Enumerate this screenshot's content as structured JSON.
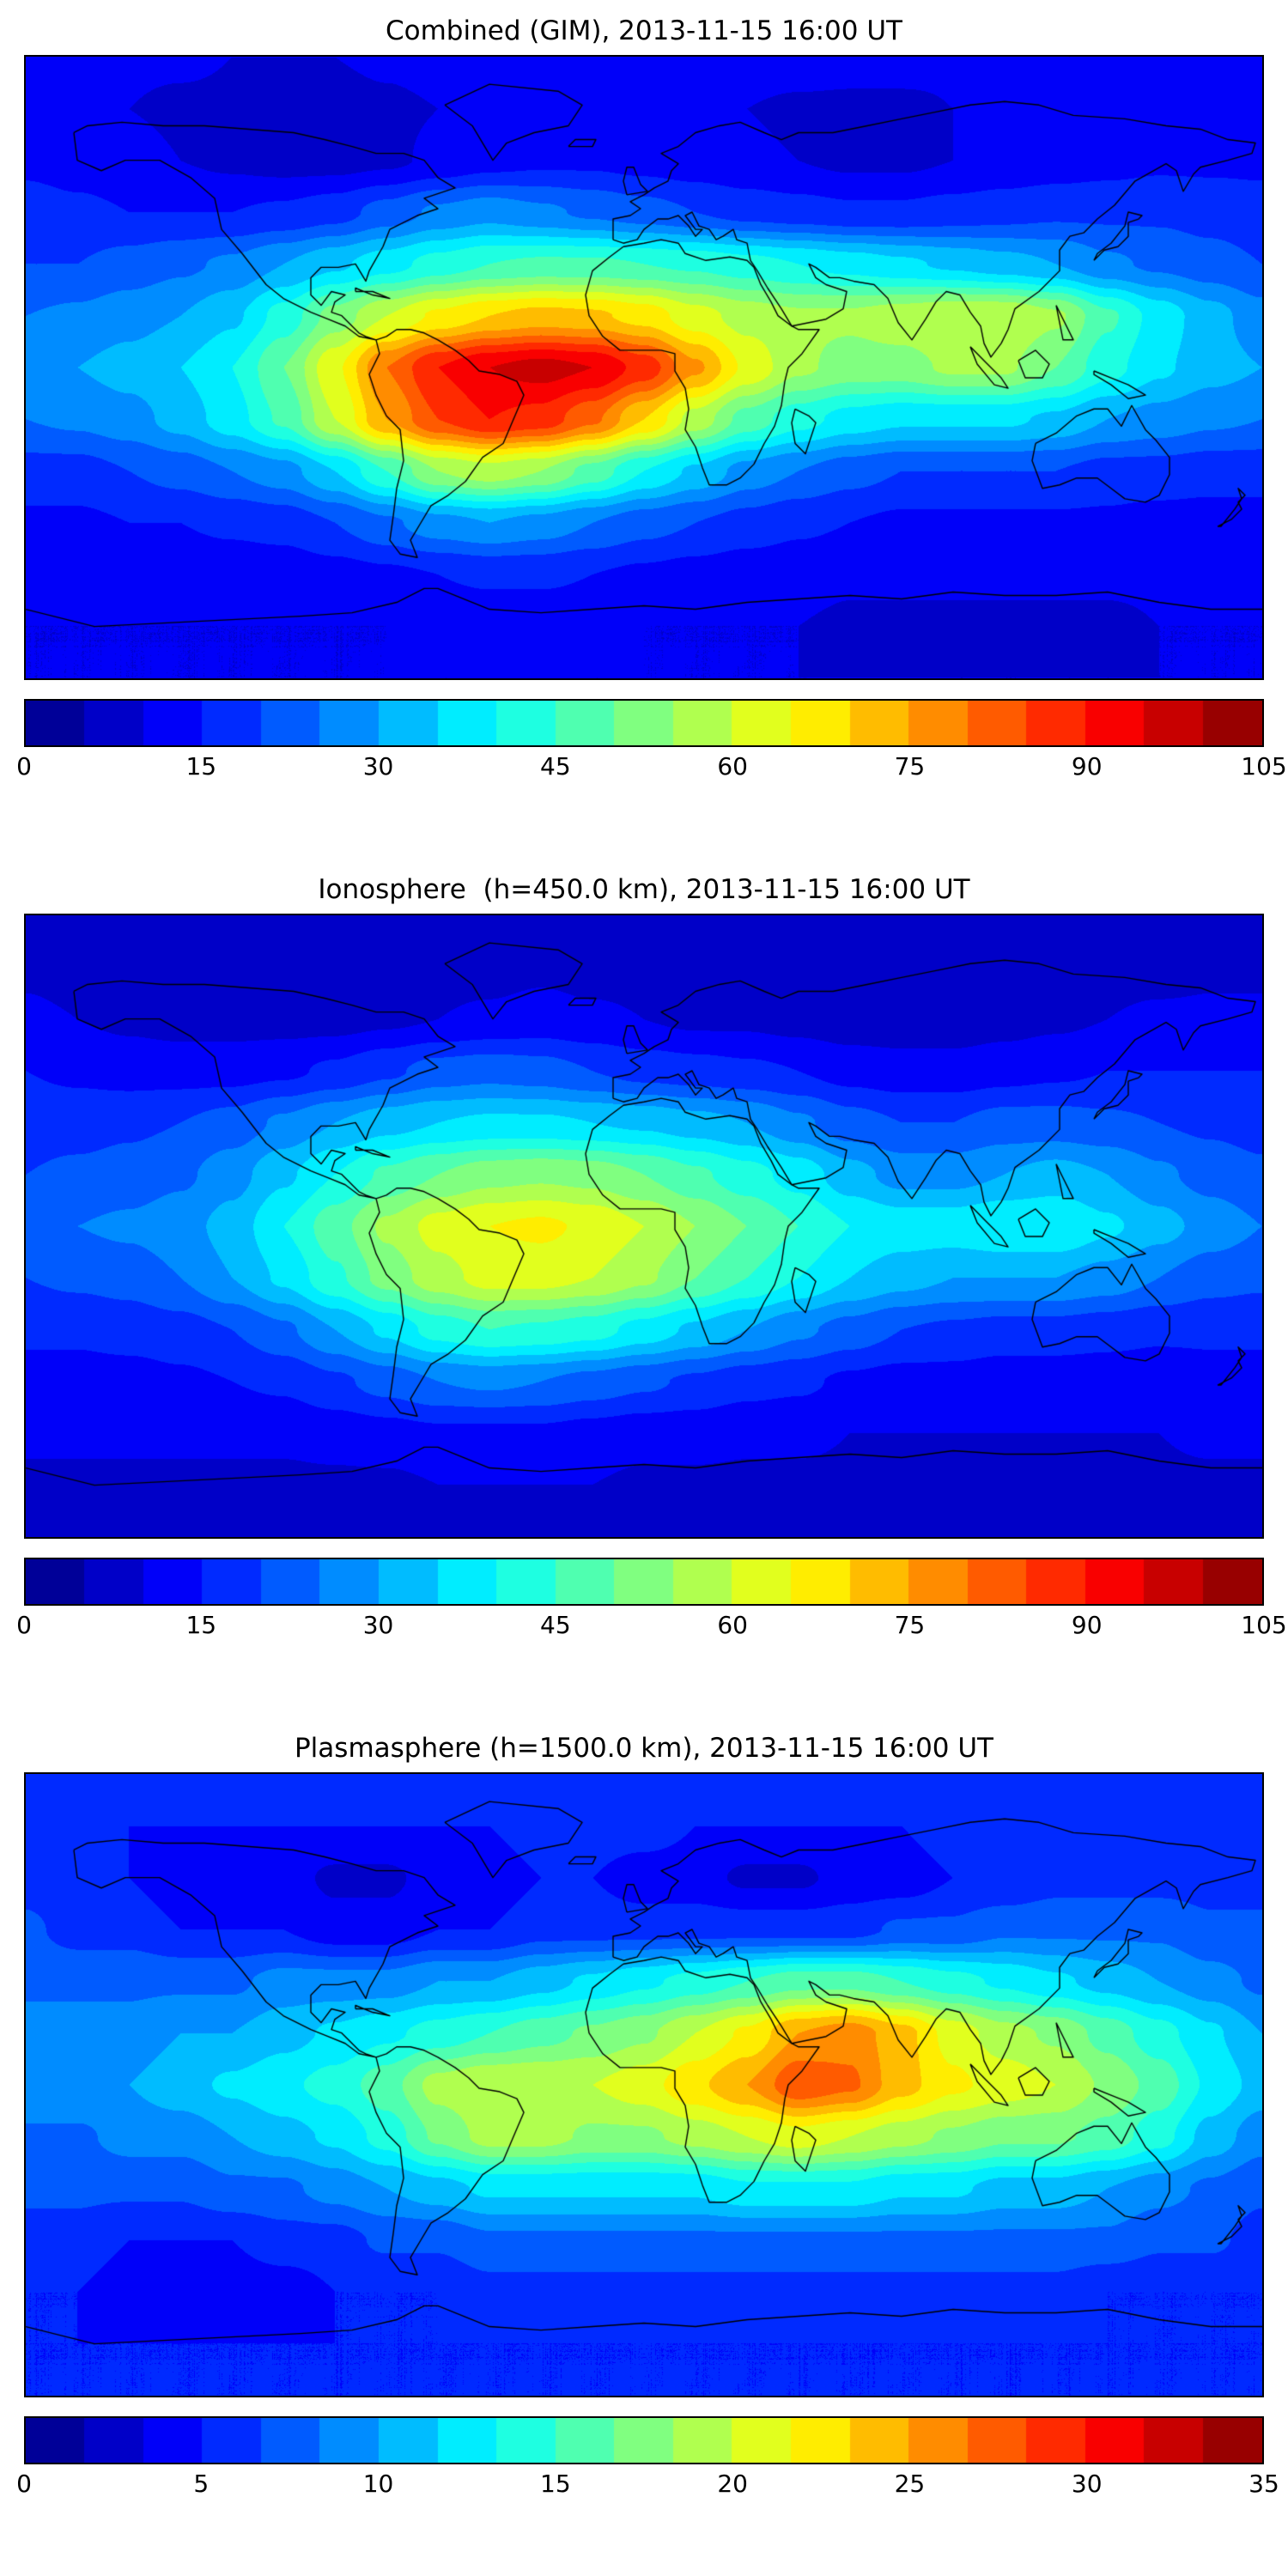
{
  "figure": {
    "background": "#ffffff",
    "colormap": "jet",
    "colormap_end_colors": {
      "low": "#000098",
      "high": "#980000"
    }
  },
  "chart_data": [
    {
      "type": "heatmap",
      "title": "Combined (GIM), 2013-11-15 16:00 UT",
      "projection": "equirectangular world map with coastlines",
      "colormap": "jet",
      "vmin": 0,
      "vmax": 105,
      "levels": 21,
      "colorbar_ticks": [
        0,
        15,
        30,
        45,
        60,
        75,
        90,
        105
      ],
      "colorbar_position": "bottom",
      "lon": [
        -180,
        -165,
        -150,
        -135,
        -120,
        -105,
        -90,
        -75,
        -60,
        -45,
        -30,
        -15,
        0,
        15,
        30,
        45,
        60,
        75,
        90,
        105,
        120,
        135,
        150,
        165,
        180
      ],
      "lat": [
        90,
        75,
        60,
        45,
        30,
        15,
        0,
        -15,
        -30,
        -45,
        -60,
        -75,
        -90
      ],
      "values": [
        [
          12,
          12,
          11,
          11,
          10,
          10,
          10,
          11,
          12,
          13,
          13,
          12,
          12,
          12,
          13,
          13,
          12,
          12,
          11,
          11,
          10,
          10,
          11,
          12,
          12
        ],
        [
          12,
          11,
          10,
          9,
          9,
          8,
          8,
          9,
          10,
          12,
          13,
          12,
          11,
          10,
          10,
          9,
          9,
          9,
          10,
          11,
          11,
          11,
          12,
          12,
          12
        ],
        [
          14,
          13,
          12,
          10,
          9,
          8,
          8,
          9,
          11,
          13,
          14,
          14,
          13,
          12,
          11,
          10,
          9,
          9,
          10,
          11,
          12,
          13,
          14,
          14,
          14
        ],
        [
          17,
          16,
          15,
          15,
          15,
          16,
          18,
          22,
          26,
          28,
          26,
          24,
          22,
          20,
          18,
          17,
          16,
          16,
          17,
          18,
          19,
          19,
          19,
          18,
          17
        ],
        [
          20,
          20,
          22,
          24,
          26,
          30,
          34,
          38,
          42,
          45,
          46,
          46,
          45,
          44,
          42,
          40,
          38,
          36,
          34,
          32,
          30,
          26,
          24,
          22,
          20
        ],
        [
          25,
          26,
          28,
          30,
          34,
          42,
          52,
          60,
          66,
          70,
          72,
          71,
          68,
          62,
          58,
          56,
          56,
          58,
          60,
          60,
          56,
          46,
          38,
          32,
          27
        ],
        [
          30,
          30,
          32,
          35,
          40,
          50,
          64,
          80,
          90,
          95,
          97,
          95,
          88,
          76,
          64,
          56,
          53,
          53,
          56,
          56,
          50,
          42,
          36,
          32,
          30
        ],
        [
          25,
          26,
          28,
          32,
          38,
          46,
          60,
          75,
          85,
          90,
          88,
          81,
          70,
          58,
          48,
          42,
          38,
          36,
          36,
          36,
          34,
          30,
          28,
          26,
          25
        ],
        [
          18,
          18,
          20,
          22,
          25,
          28,
          35,
          45,
          55,
          58,
          55,
          48,
          40,
          34,
          28,
          25,
          22,
          20,
          20,
          20,
          20,
          18,
          18,
          17,
          17
        ],
        [
          14,
          14,
          15,
          15,
          16,
          17,
          20,
          24,
          28,
          30,
          28,
          25,
          22,
          20,
          18,
          16,
          15,
          14,
          14,
          14,
          14,
          14,
          13,
          13,
          13
        ],
        [
          12,
          12,
          12,
          12,
          12,
          12,
          13,
          14,
          15,
          16,
          16,
          15,
          14,
          13,
          12,
          12,
          11,
          11,
          11,
          11,
          11,
          11,
          11,
          12,
          12
        ],
        [
          10,
          10,
          10,
          10,
          10,
          10,
          10,
          10,
          11,
          11,
          11,
          11,
          10,
          10,
          10,
          10,
          9,
          9,
          9,
          9,
          9,
          9,
          10,
          10,
          10
        ],
        [
          10,
          10,
          10,
          10,
          10,
          10,
          10,
          10,
          10,
          10,
          10,
          10,
          10,
          10,
          10,
          10,
          10,
          10,
          10,
          10,
          10,
          10,
          10,
          10,
          10
        ]
      ]
    },
    {
      "type": "heatmap",
      "title": "Ionosphere  (h=450.0 km), 2013-11-15 16:00 UT",
      "projection": "equirectangular world map with coastlines",
      "colormap": "jet",
      "vmin": 0,
      "vmax": 105,
      "levels": 21,
      "colorbar_ticks": [
        0,
        15,
        30,
        45,
        60,
        75,
        90,
        105
      ],
      "colorbar_position": "bottom",
      "lon": [
        -180,
        -165,
        -150,
        -135,
        -120,
        -105,
        -90,
        -75,
        -60,
        -45,
        -30,
        -15,
        0,
        15,
        30,
        45,
        60,
        75,
        90,
        105,
        120,
        135,
        150,
        165,
        180
      ],
      "lat": [
        90,
        75,
        60,
        45,
        30,
        15,
        0,
        -15,
        -30,
        -45,
        -60,
        -75,
        -90
      ],
      "values": [
        [
          9,
          9,
          9,
          8,
          8,
          8,
          8,
          8,
          9,
          9,
          9,
          9,
          9,
          8,
          8,
          8,
          8,
          8,
          8,
          8,
          9,
          9,
          9,
          9,
          9
        ],
        [
          9,
          8,
          8,
          7,
          7,
          7,
          7,
          7,
          8,
          8,
          9,
          8,
          8,
          7,
          7,
          6,
          6,
          6,
          6,
          7,
          7,
          8,
          8,
          9,
          9
        ],
        [
          11,
          10,
          9,
          8,
          8,
          8,
          8,
          9,
          10,
          11,
          12,
          11,
          10,
          9,
          9,
          8,
          7,
          7,
          7,
          8,
          9,
          10,
          11,
          11,
          11
        ],
        [
          15,
          14,
          13,
          13,
          13,
          14,
          16,
          19,
          22,
          23,
          22,
          20,
          18,
          17,
          16,
          15,
          13,
          12,
          12,
          13,
          14,
          15,
          15,
          15,
          15
        ],
        [
          18,
          18,
          19,
          20,
          22,
          26,
          30,
          33,
          35,
          36,
          36,
          35,
          34,
          32,
          30,
          26,
          22,
          20,
          20,
          22,
          22,
          21,
          20,
          19,
          18
        ],
        [
          20,
          21,
          22,
          24,
          28,
          34,
          40,
          46,
          50,
          53,
          54,
          53,
          50,
          46,
          42,
          38,
          32,
          28,
          28,
          30,
          32,
          30,
          26,
          23,
          21
        ],
        [
          24,
          25,
          26,
          28,
          32,
          40,
          48,
          56,
          62,
          65,
          66,
          64,
          60,
          55,
          50,
          45,
          40,
          38,
          38,
          40,
          40,
          36,
          32,
          28,
          25
        ],
        [
          20,
          21,
          22,
          25,
          30,
          36,
          44,
          52,
          58,
          62,
          62,
          60,
          56,
          50,
          45,
          40,
          35,
          32,
          30,
          30,
          30,
          28,
          25,
          22,
          21
        ],
        [
          16,
          16,
          17,
          18,
          20,
          24,
          30,
          36,
          42,
          45,
          44,
          42,
          38,
          34,
          30,
          26,
          23,
          20,
          19,
          18,
          18,
          17,
          16,
          16,
          16
        ],
        [
          13,
          13,
          13,
          14,
          15,
          16,
          19,
          22,
          25,
          26,
          25,
          23,
          21,
          19,
          17,
          16,
          14,
          13,
          13,
          12,
          12,
          12,
          12,
          13,
          13
        ],
        [
          11,
          11,
          11,
          11,
          11,
          11,
          12,
          13,
          14,
          14,
          14,
          13,
          12,
          12,
          11,
          11,
          10,
          10,
          10,
          10,
          10,
          10,
          10,
          11,
          11
        ],
        [
          9,
          9,
          9,
          9,
          9,
          9,
          9,
          9,
          10,
          10,
          10,
          10,
          9,
          9,
          9,
          9,
          9,
          9,
          9,
          9,
          9,
          9,
          9,
          9,
          9
        ],
        [
          9,
          9,
          9,
          9,
          9,
          9,
          9,
          9,
          9,
          9,
          9,
          9,
          9,
          9,
          9,
          9,
          9,
          9,
          9,
          9,
          9,
          9,
          9,
          9,
          9
        ]
      ]
    },
    {
      "type": "heatmap",
      "title": "Plasmasphere (h=1500.0 km), 2013-11-15 16:00 UT",
      "projection": "equirectangular world map with coastlines",
      "colormap": "jet",
      "vmin": 0,
      "vmax": 35,
      "levels": 21,
      "colorbar_ticks": [
        0,
        5,
        10,
        15,
        20,
        25,
        30,
        35
      ],
      "colorbar_position": "bottom",
      "lon": [
        -180,
        -165,
        -150,
        -135,
        -120,
        -105,
        -90,
        -75,
        -60,
        -45,
        -30,
        -15,
        0,
        15,
        30,
        45,
        60,
        75,
        90,
        105,
        120,
        135,
        150,
        165,
        180
      ],
      "lat": [
        90,
        75,
        60,
        45,
        30,
        15,
        0,
        -15,
        -30,
        -45,
        -60,
        -75,
        -90
      ],
      "values": [
        [
          6,
          6,
          6,
          6,
          6,
          6,
          6,
          6,
          6,
          6,
          6,
          6,
          6,
          6,
          6,
          6,
          6,
          6,
          6,
          6,
          6,
          6,
          6,
          6,
          6
        ],
        [
          6,
          6,
          5,
          5,
          5,
          5,
          5,
          5,
          5,
          5,
          6,
          6,
          6,
          5,
          5,
          5,
          5,
          5,
          6,
          6,
          6,
          6,
          6,
          6,
          6
        ],
        [
          6,
          5,
          5,
          4,
          4,
          4,
          3,
          3,
          4,
          4,
          5,
          5,
          4,
          4,
          3,
          3,
          4,
          4,
          5,
          5,
          6,
          6,
          6,
          6,
          6
        ],
        [
          7,
          6,
          6,
          5,
          5,
          5,
          4,
          4,
          5,
          5,
          6,
          6,
          6,
          6,
          6,
          6,
          6,
          7,
          7,
          8,
          8,
          8,
          8,
          7,
          7
        ],
        [
          8,
          8,
          8,
          8,
          8,
          9,
          9,
          9,
          10,
          10,
          11,
          12,
          13,
          14,
          15,
          16,
          16,
          15,
          14,
          13,
          12,
          11,
          10,
          9,
          8
        ],
        [
          9,
          9,
          9,
          10,
          10,
          11,
          12,
          13,
          14,
          15,
          16,
          17,
          18,
          20,
          22,
          25,
          26,
          24,
          21,
          19,
          18,
          16,
          14,
          12,
          10
        ],
        [
          10,
          10,
          10,
          11,
          12,
          13,
          14,
          16,
          19,
          20,
          20,
          20,
          21,
          23,
          25,
          28,
          27,
          24,
          22,
          21,
          20,
          18,
          16,
          13,
          11
        ],
        [
          8,
          8,
          9,
          9,
          10,
          11,
          12,
          14,
          17,
          19,
          19,
          18,
          18,
          19,
          20,
          21,
          20,
          19,
          18,
          17,
          17,
          16,
          14,
          11,
          9
        ],
        [
          7,
          7,
          7,
          7,
          8,
          8,
          9,
          10,
          11,
          12,
          12,
          12,
          12,
          12,
          13,
          13,
          13,
          12,
          12,
          11,
          11,
          10,
          9,
          8,
          7
        ],
        [
          6,
          6,
          5,
          5,
          5,
          6,
          6,
          7,
          7,
          8,
          8,
          8,
          8,
          8,
          8,
          8,
          8,
          8,
          8,
          8,
          8,
          8,
          7,
          7,
          6
        ],
        [
          5,
          5,
          4,
          4,
          4,
          4,
          5,
          5,
          5,
          6,
          6,
          6,
          6,
          6,
          6,
          6,
          6,
          6,
          6,
          6,
          6,
          5,
          5,
          5,
          5
        ],
        [
          5,
          5,
          5,
          5,
          5,
          5,
          5,
          5,
          5,
          5,
          5,
          5,
          5,
          5,
          5,
          5,
          5,
          5,
          5,
          5,
          5,
          5,
          5,
          5,
          5
        ],
        [
          5,
          5,
          5,
          5,
          5,
          5,
          5,
          5,
          5,
          5,
          5,
          5,
          5,
          5,
          5,
          5,
          5,
          5,
          5,
          5,
          5,
          5,
          5,
          5,
          5
        ]
      ]
    }
  ]
}
